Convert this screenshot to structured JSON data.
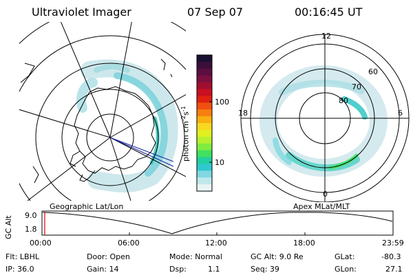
{
  "header": {
    "title": "Ultraviolet Imager",
    "date": "07 Sep 07",
    "time": "00:16:45 UT"
  },
  "colorbar": {
    "label_main": "photon cm",
    "sup1": "-2",
    "mid": "s",
    "sup2": "-1",
    "ticks": [
      "100",
      "10"
    ],
    "colors": [
      "#1a1030",
      "#3a0f3a",
      "#5a0f40",
      "#7a0f40",
      "#a00f30",
      "#c81020",
      "#e02010",
      "#f05010",
      "#f88010",
      "#f8b010",
      "#f8d820",
      "#e0f020",
      "#b8f030",
      "#80ec40",
      "#40e060",
      "#20d0a0",
      "#30c8d0",
      "#80d8e0",
      "#c0e8ec",
      "#e8f4f4"
    ]
  },
  "left_map": {
    "caption": "Geographic Lat/Lon"
  },
  "right_map": {
    "caption": "Apex MLat/MLT",
    "mlt_labels": {
      "top": "12",
      "bottom": "0",
      "left": "18",
      "right": "6"
    },
    "lat_labels": [
      "60",
      "70",
      "80"
    ]
  },
  "altitude_plot": {
    "axis_label": "GC Alt",
    "y_top": "9.0",
    "y_bottom": "1.8",
    "x_ticks": [
      "00:00",
      "06:00",
      "12:00",
      "18:00",
      "23:59"
    ]
  },
  "info": {
    "filter": "Flt: LBHL",
    "ip": "IP: 36.0",
    "door": "Door: Open",
    "gain": "Gain: 14",
    "mode": "Mode: Normal",
    "dsp_label": "Dsp:",
    "dsp_value": "1.1",
    "gc_alt": "GC Alt: 9.0 Re",
    "seq": "Seq: 39",
    "glat_label": "GLat:",
    "glat_value": "-80.3",
    "glon_label": "GLon:",
    "glon_value": "27.1"
  }
}
